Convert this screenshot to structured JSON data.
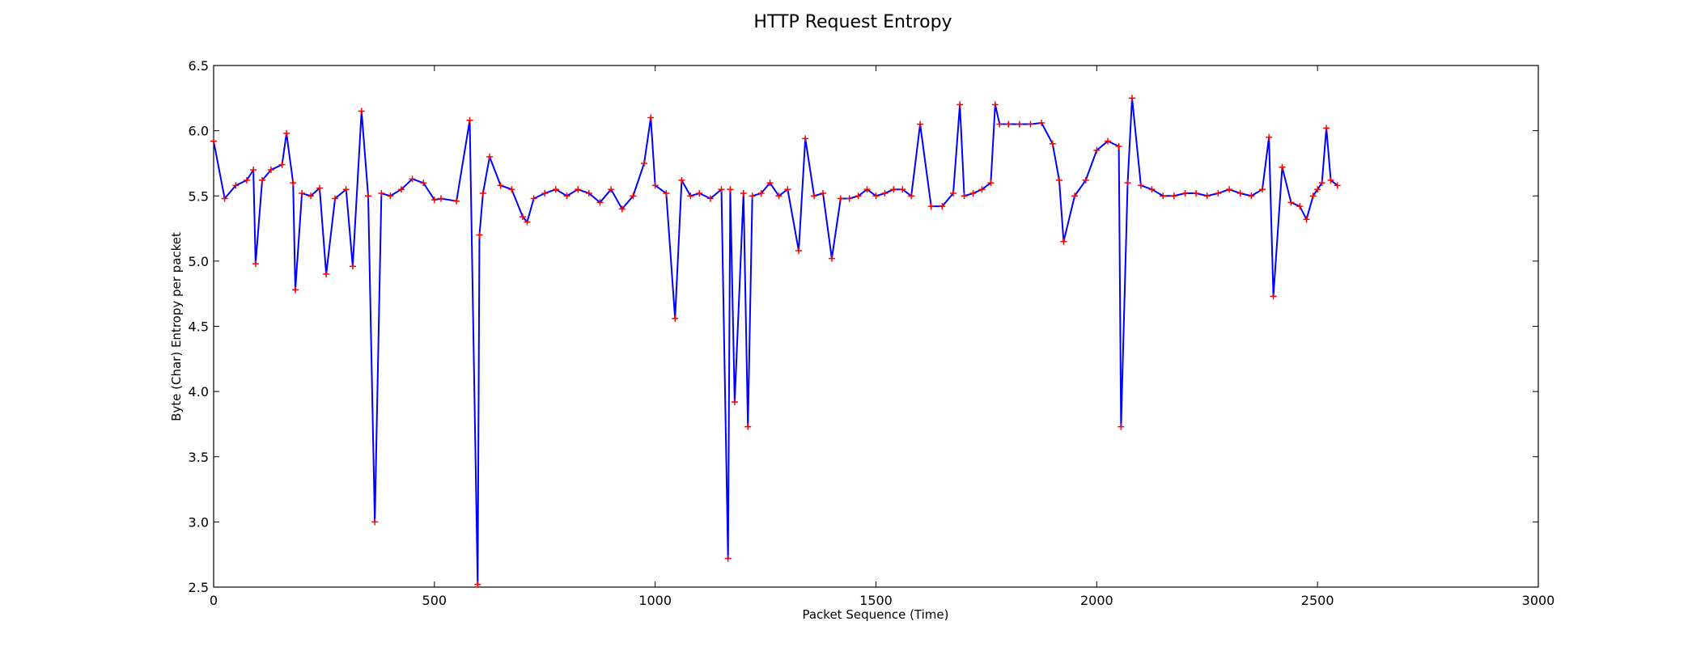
{
  "chart_data": {
    "type": "line",
    "title": "HTTP Request Entropy",
    "xlabel": "Packet Sequence (Time)",
    "ylabel": "Byte (Char) Entropy per packet",
    "xlim": [
      0,
      3000
    ],
    "ylim": [
      2.5,
      6.5
    ],
    "xticks": [
      0,
      500,
      1000,
      1500,
      2000,
      2500,
      3000
    ],
    "yticks": [
      2.5,
      3.0,
      3.5,
      4.0,
      4.5,
      5.0,
      5.5,
      6.0,
      6.5
    ],
    "xtick_labels": [
      "0",
      "500",
      "1000",
      "1500",
      "2000",
      "2500",
      "3000"
    ],
    "ytick_labels": [
      "2.5",
      "3.0",
      "3.5",
      "4.0",
      "4.5",
      "5.0",
      "5.5",
      "6.0",
      "6.5"
    ],
    "grid": false,
    "legend": "none",
    "line_color": "#0000ff",
    "marker_color": "#ff0000",
    "marker": "+",
    "series": [
      {
        "x": [
          0,
          25,
          50,
          75,
          90,
          95,
          110,
          130,
          155,
          165,
          180,
          185,
          200,
          220,
          240,
          255,
          275,
          300,
          315,
          335,
          350,
          365,
          380,
          400,
          425,
          450,
          475,
          500,
          515,
          550,
          580,
          598,
          602,
          610,
          625,
          650,
          675,
          700,
          710,
          725,
          750,
          775,
          800,
          825,
          850,
          875,
          900,
          925,
          950,
          975,
          990,
          1000,
          1025,
          1045,
          1060,
          1080,
          1100,
          1125,
          1150,
          1165,
          1170,
          1180,
          1200,
          1210,
          1220,
          1240,
          1260,
          1280,
          1300,
          1325,
          1340,
          1360,
          1380,
          1400,
          1420,
          1440,
          1460,
          1480,
          1500,
          1520,
          1540,
          1560,
          1580,
          1600,
          1625,
          1650,
          1675,
          1690,
          1700,
          1720,
          1740,
          1760,
          1770,
          1780,
          1800,
          1825,
          1850,
          1875,
          1900,
          1915,
          1925,
          1950,
          1975,
          2000,
          2025,
          2050,
          2055,
          2070,
          2080,
          2100,
          2125,
          2150,
          2175,
          2200,
          2225,
          2250,
          2275,
          2300,
          2325,
          2350,
          2375,
          2390,
          2400,
          2420,
          2440,
          2460,
          2475,
          2490,
          2500,
          2510,
          2520,
          2530,
          2545
        ],
        "y": [
          5.92,
          5.48,
          5.58,
          5.62,
          5.7,
          4.98,
          5.62,
          5.7,
          5.74,
          5.98,
          5.6,
          4.78,
          5.52,
          5.5,
          5.56,
          4.9,
          5.48,
          5.55,
          4.96,
          6.15,
          5.5,
          3.0,
          5.52,
          5.5,
          5.55,
          5.63,
          5.6,
          5.47,
          5.48,
          5.46,
          6.08,
          2.52,
          5.2,
          5.52,
          5.8,
          5.58,
          5.55,
          5.34,
          5.3,
          5.48,
          5.52,
          5.55,
          5.5,
          5.55,
          5.52,
          5.45,
          5.55,
          5.4,
          5.5,
          5.75,
          6.1,
          5.58,
          5.52,
          4.56,
          5.62,
          5.5,
          5.52,
          5.48,
          5.55,
          2.72,
          5.55,
          3.92,
          5.52,
          3.73,
          5.5,
          5.52,
          5.6,
          5.5,
          5.55,
          5.08,
          5.94,
          5.5,
          5.52,
          5.02,
          5.48,
          5.48,
          5.5,
          5.55,
          5.5,
          5.52,
          5.55,
          5.55,
          5.5,
          6.05,
          5.42,
          5.42,
          5.52,
          6.2,
          5.5,
          5.52,
          5.55,
          5.6,
          6.2,
          6.05,
          6.05,
          6.05,
          6.05,
          6.06,
          5.9,
          5.62,
          5.15,
          5.5,
          5.62,
          5.85,
          5.92,
          5.88,
          3.73,
          5.6,
          6.25,
          5.58,
          5.55,
          5.5,
          5.5,
          5.52,
          5.52,
          5.5,
          5.52,
          5.55,
          5.52,
          5.5,
          5.55,
          5.95,
          4.73,
          5.72,
          5.45,
          5.42,
          5.32,
          5.5,
          5.55,
          5.6,
          6.02,
          5.62,
          5.58
        ]
      }
    ]
  }
}
